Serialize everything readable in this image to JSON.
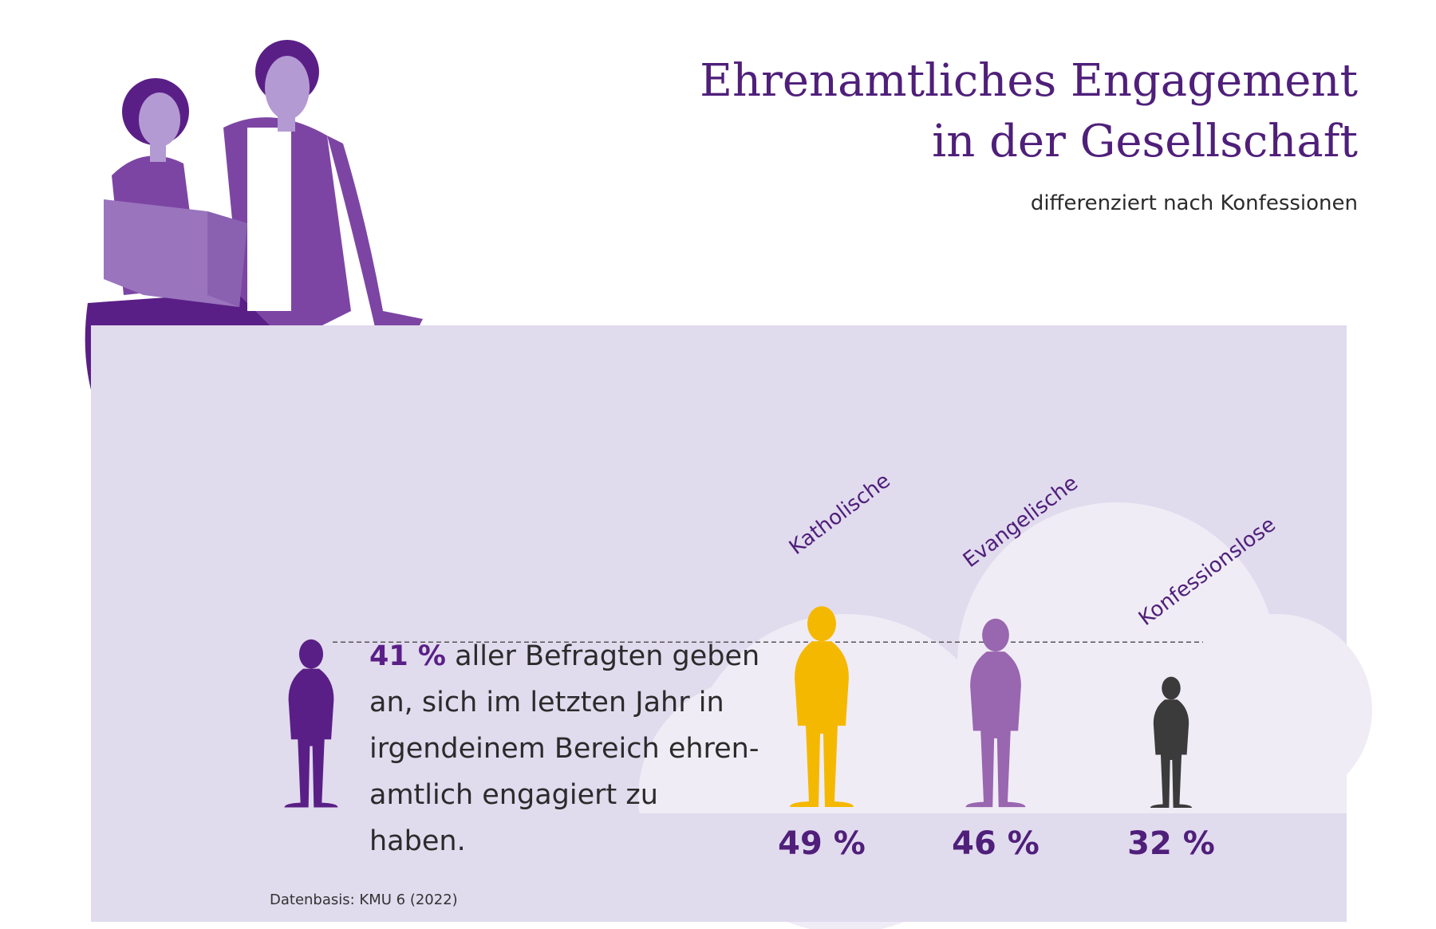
{
  "title_line1": "Ehrenamtliches Engagement",
  "title_line2": "in der Gesellschaft",
  "subtitle": "differenziert nach Konfessionen",
  "callout": {
    "percent": "41 %",
    "text": " aller Befragten geben an, sich im letzten Jahr in irgendeinem Bereich ehren-amtlich engagiert zu haben."
  },
  "source": "Datenbasis: KMU 6 (2022)",
  "colors": {
    "accent": "#5a1f86",
    "panel": "#e1dbee",
    "katholische": "#f5b800",
    "evangelische": "#9966b0",
    "konfessionslose": "#3b3b3b",
    "reference": "#5a1f86"
  },
  "chart_data": {
    "type": "bar",
    "reference": {
      "value": 41,
      "label": "41 %"
    },
    "categories": [
      "Katholische",
      "Evangelische",
      "Konfessionslose"
    ],
    "values": [
      49,
      46,
      32
    ],
    "value_labels": [
      "49 %",
      "46 %",
      "32 %"
    ],
    "unit": "%"
  }
}
